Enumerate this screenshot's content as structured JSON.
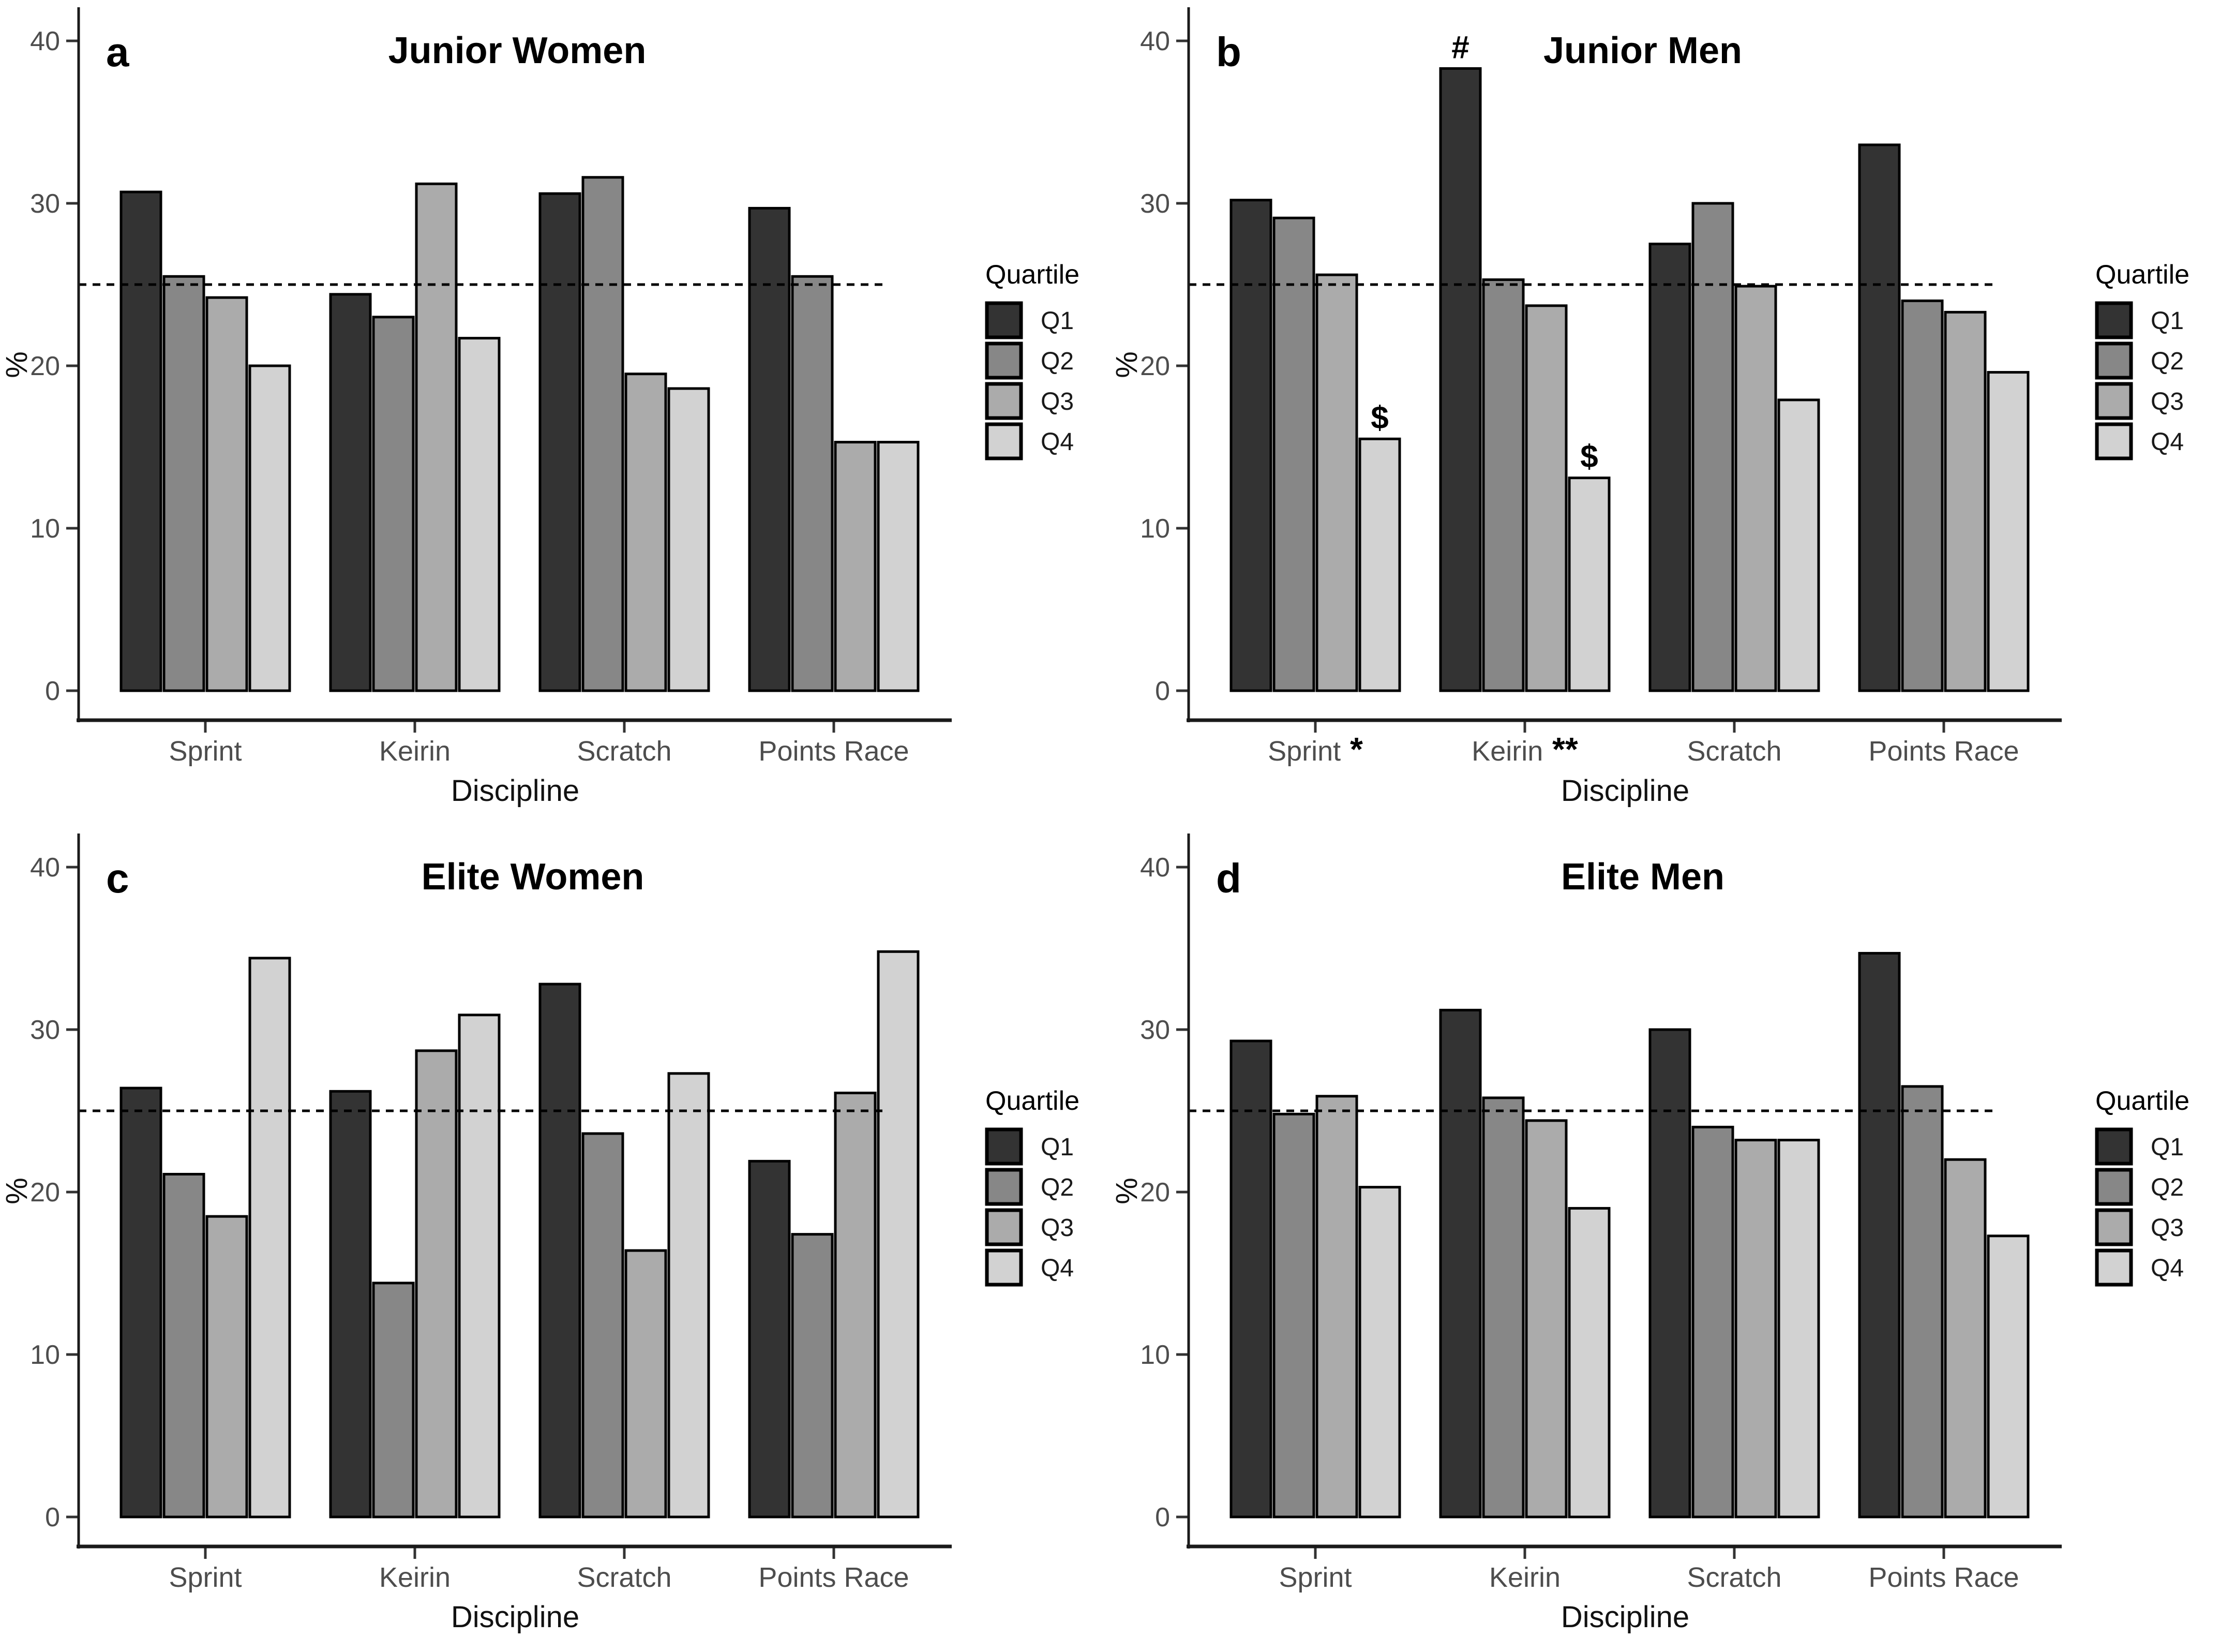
{
  "colors": {
    "q1": "#333333",
    "q2": "#878787",
    "q3": "#ababab",
    "q4": "#d2d2d2",
    "axis_text": "#4d4d4d",
    "text": "#000000"
  },
  "legend": {
    "title": "Quartile",
    "entries": [
      "Q1",
      "Q2",
      "Q3",
      "Q4"
    ]
  },
  "chart_data": [
    {
      "type": "bar",
      "panel": "a",
      "title": "Junior Women",
      "xlabel": "Discipline",
      "ylabel": "%",
      "ylim": [
        0,
        42
      ],
      "yticks": [
        0,
        10,
        20,
        30,
        40
      ],
      "reference_line": 25,
      "grid": false,
      "legend_position": "right",
      "categories": [
        "Sprint",
        "Keirin",
        "Scratch",
        "Points Race"
      ],
      "category_suffixes": [
        "",
        "",
        "",
        ""
      ],
      "series": [
        {
          "name": "Q1",
          "values": [
            30.7,
            24.4,
            30.6,
            29.7
          ]
        },
        {
          "name": "Q2",
          "values": [
            25.5,
            23.0,
            31.6,
            25.5
          ]
        },
        {
          "name": "Q3",
          "values": [
            24.2,
            31.2,
            19.5,
            15.3
          ]
        },
        {
          "name": "Q4",
          "values": [
            20.0,
            21.7,
            18.6,
            15.3
          ]
        }
      ],
      "annotations": []
    },
    {
      "type": "bar",
      "panel": "b",
      "title": "Junior Men",
      "xlabel": "Discipline",
      "ylabel": "%",
      "ylim": [
        0,
        42
      ],
      "yticks": [
        0,
        10,
        20,
        30,
        40
      ],
      "reference_line": 25,
      "grid": false,
      "legend_position": "right",
      "categories": [
        "Sprint",
        "Keirin",
        "Scratch",
        "Points Race"
      ],
      "category_suffixes": [
        " *",
        " **",
        "",
        ""
      ],
      "series": [
        {
          "name": "Q1",
          "values": [
            30.2,
            38.3,
            27.5,
            33.6
          ]
        },
        {
          "name": "Q2",
          "values": [
            29.1,
            25.3,
            30.0,
            24.0
          ]
        },
        {
          "name": "Q3",
          "values": [
            25.6,
            23.7,
            24.9,
            23.3
          ]
        },
        {
          "name": "Q4",
          "values": [
            15.5,
            13.1,
            17.9,
            19.6
          ]
        }
      ],
      "annotations": [
        {
          "text": "#",
          "category": 1,
          "series": 0
        },
        {
          "text": "$",
          "category": 0,
          "series": 3
        },
        {
          "text": "$",
          "category": 1,
          "series": 3
        }
      ]
    },
    {
      "type": "bar",
      "panel": "c",
      "title": "Elite Women",
      "xlabel": "Discipline",
      "ylabel": "%",
      "ylim": [
        0,
        42
      ],
      "yticks": [
        0,
        10,
        20,
        30,
        40
      ],
      "reference_line": 25,
      "grid": false,
      "legend_position": "right",
      "categories": [
        "Sprint",
        "Keirin",
        "Scratch",
        "Points Race"
      ],
      "category_suffixes": [
        "",
        "",
        "",
        ""
      ],
      "series": [
        {
          "name": "Q1",
          "values": [
            26.4,
            26.2,
            32.8,
            21.9
          ]
        },
        {
          "name": "Q2",
          "values": [
            21.1,
            14.4,
            23.6,
            17.4
          ]
        },
        {
          "name": "Q3",
          "values": [
            18.5,
            28.7,
            16.4,
            26.1
          ]
        },
        {
          "name": "Q4",
          "values": [
            34.4,
            30.9,
            27.3,
            34.8
          ]
        }
      ],
      "annotations": []
    },
    {
      "type": "bar",
      "panel": "d",
      "title": "Elite Men",
      "xlabel": "Discipline",
      "ylabel": "%",
      "ylim": [
        0,
        42
      ],
      "yticks": [
        0,
        10,
        20,
        30,
        40
      ],
      "reference_line": 25,
      "grid": false,
      "legend_position": "right",
      "categories": [
        "Sprint",
        "Keirin",
        "Scratch",
        "Points Race"
      ],
      "category_suffixes": [
        "",
        "",
        "",
        ""
      ],
      "series": [
        {
          "name": "Q1",
          "values": [
            29.3,
            31.2,
            30.0,
            34.7
          ]
        },
        {
          "name": "Q2",
          "values": [
            24.8,
            25.8,
            24.0,
            26.5
          ]
        },
        {
          "name": "Q3",
          "values": [
            25.9,
            24.4,
            23.2,
            22.0
          ]
        },
        {
          "name": "Q4",
          "values": [
            20.3,
            19.0,
            23.2,
            17.3
          ]
        }
      ],
      "annotations": []
    }
  ]
}
